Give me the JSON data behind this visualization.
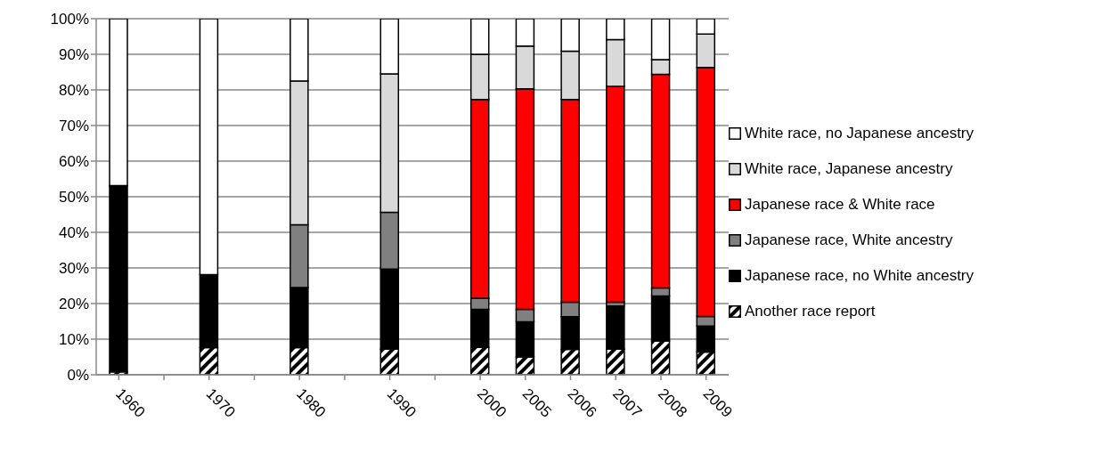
{
  "chart_data": {
    "type": "bar",
    "stacked": true,
    "categories": [
      "1960",
      null,
      "1970",
      null,
      "1980",
      null,
      "1990",
      null,
      "2000",
      "2005",
      "2006",
      "2007",
      "2008",
      "2009"
    ],
    "series": [
      {
        "name": "Another race report",
        "color": "#000000",
        "values": [
          0.8,
          null,
          7.6,
          null,
          7.6,
          null,
          7.2,
          null,
          7.7,
          5.0,
          7.1,
          7.2,
          9.5,
          6.4
        ]
      },
      {
        "name": "Japanese race, no White ancestry",
        "color": "#000000",
        "values": [
          52.3,
          null,
          20.5,
          null,
          16.9,
          null,
          22.5,
          null,
          10.7,
          9.9,
          9.2,
          12.1,
          12.6,
          7.3
        ]
      },
      {
        "name": "Japanese race, White ancestry",
        "color": "#808080",
        "values": [
          0,
          null,
          0,
          null,
          17.6,
          null,
          15.9,
          null,
          3.1,
          3.5,
          4.1,
          1.1,
          2.3,
          2.7
        ]
      },
      {
        "name": "Japanese race & White race",
        "color": "#ff0000",
        "values": [
          0,
          null,
          0,
          null,
          0,
          null,
          0,
          null,
          55.8,
          61.9,
          56.9,
          60.6,
          60.0,
          69.9
        ]
      },
      {
        "name": "White race, Japanese ancestry",
        "color": "#d9d9d9",
        "values": [
          0,
          null,
          0,
          null,
          40.4,
          null,
          38.9,
          null,
          12.7,
          12.0,
          13.6,
          13.1,
          4.1,
          9.4
        ]
      },
      {
        "name": "White race, no Japanese ancestry",
        "color": "#ffffff",
        "values": [
          47.0,
          null,
          71.9,
          null,
          17.5,
          null,
          15.5,
          null,
          10.0,
          7.7,
          9.1,
          5.9,
          11.5,
          4.3
        ]
      }
    ],
    "ylim": [
      0,
      100
    ],
    "yticks": [
      {
        "value": 0,
        "label": "0%"
      },
      {
        "value": 10,
        "label": "10%"
      },
      {
        "value": 20,
        "label": "20%"
      },
      {
        "value": 30,
        "label": "30%"
      },
      {
        "value": 40,
        "label": "40%"
      },
      {
        "value": 50,
        "label": "50%"
      },
      {
        "value": 60,
        "label": "60%"
      },
      {
        "value": 70,
        "label": "70%"
      },
      {
        "value": 80,
        "label": "80%"
      },
      {
        "value": 90,
        "label": "90%"
      },
      {
        "value": 100,
        "label": "100%"
      }
    ],
    "grid": "y",
    "legend": "right"
  }
}
